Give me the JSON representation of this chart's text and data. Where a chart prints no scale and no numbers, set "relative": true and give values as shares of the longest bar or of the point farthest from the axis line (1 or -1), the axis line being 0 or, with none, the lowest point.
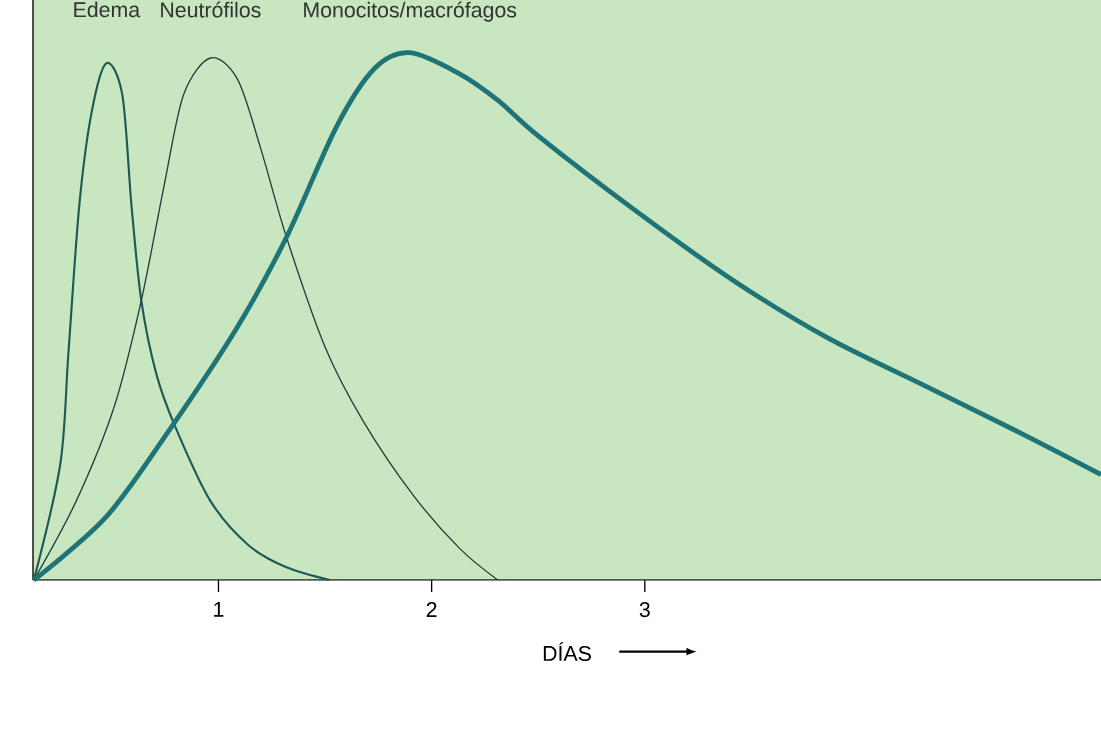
{
  "chart_data": {
    "type": "line",
    "relative": true,
    "xlabel": "DÍAS",
    "xlim": [
      0.13,
      5.14
    ],
    "xticks": [
      1,
      2,
      3
    ],
    "marker": "none",
    "line_style": "solid",
    "legend": false,
    "grid": false,
    "series": [
      {
        "name": "Edema",
        "color": "#1d5a56",
        "x": [
          0.134,
          0.258,
          0.296,
          0.347,
          0.404,
          0.474,
          0.549,
          0.592,
          0.638,
          0.709,
          0.798,
          0.962,
          1.141,
          1.319,
          1.521
        ],
        "values": [
          0,
          0.22,
          0.43,
          0.71,
          0.885,
          0.98,
          0.92,
          0.71,
          0.53,
          0.39,
          0.29,
          0.15,
          0.066,
          0.024,
          0
        ]
      },
      {
        "name": "Neutrófilos",
        "color": "#1f3f3c",
        "x": [
          0.134,
          0.333,
          0.512,
          0.638,
          0.746,
          0.836,
          0.962,
          1.089,
          1.197,
          1.319,
          1.502,
          1.681,
          1.915,
          2.131,
          2.31
        ],
        "values": [
          0,
          0.15,
          0.33,
          0.53,
          0.75,
          0.92,
          0.99,
          0.95,
          0.82,
          0.65,
          0.44,
          0.3,
          0.16,
          0.06,
          0
        ]
      },
      {
        "name": "Monocitos/macrófagos",
        "color": "#1e7476",
        "x": [
          0.134,
          0.474,
          0.779,
          1.089,
          1.319,
          1.554,
          1.732,
          1.897,
          2.131,
          2.31,
          2.507,
          2.958,
          3.408,
          3.854,
          4.305,
          4.756,
          5.14
        ],
        "values": [
          0,
          0.12,
          0.29,
          0.48,
          0.65,
          0.86,
          0.97,
          1.0,
          0.96,
          0.91,
          0.84,
          0.7,
          0.57,
          0.46,
          0.37,
          0.28,
          0.2
        ]
      }
    ]
  }
}
